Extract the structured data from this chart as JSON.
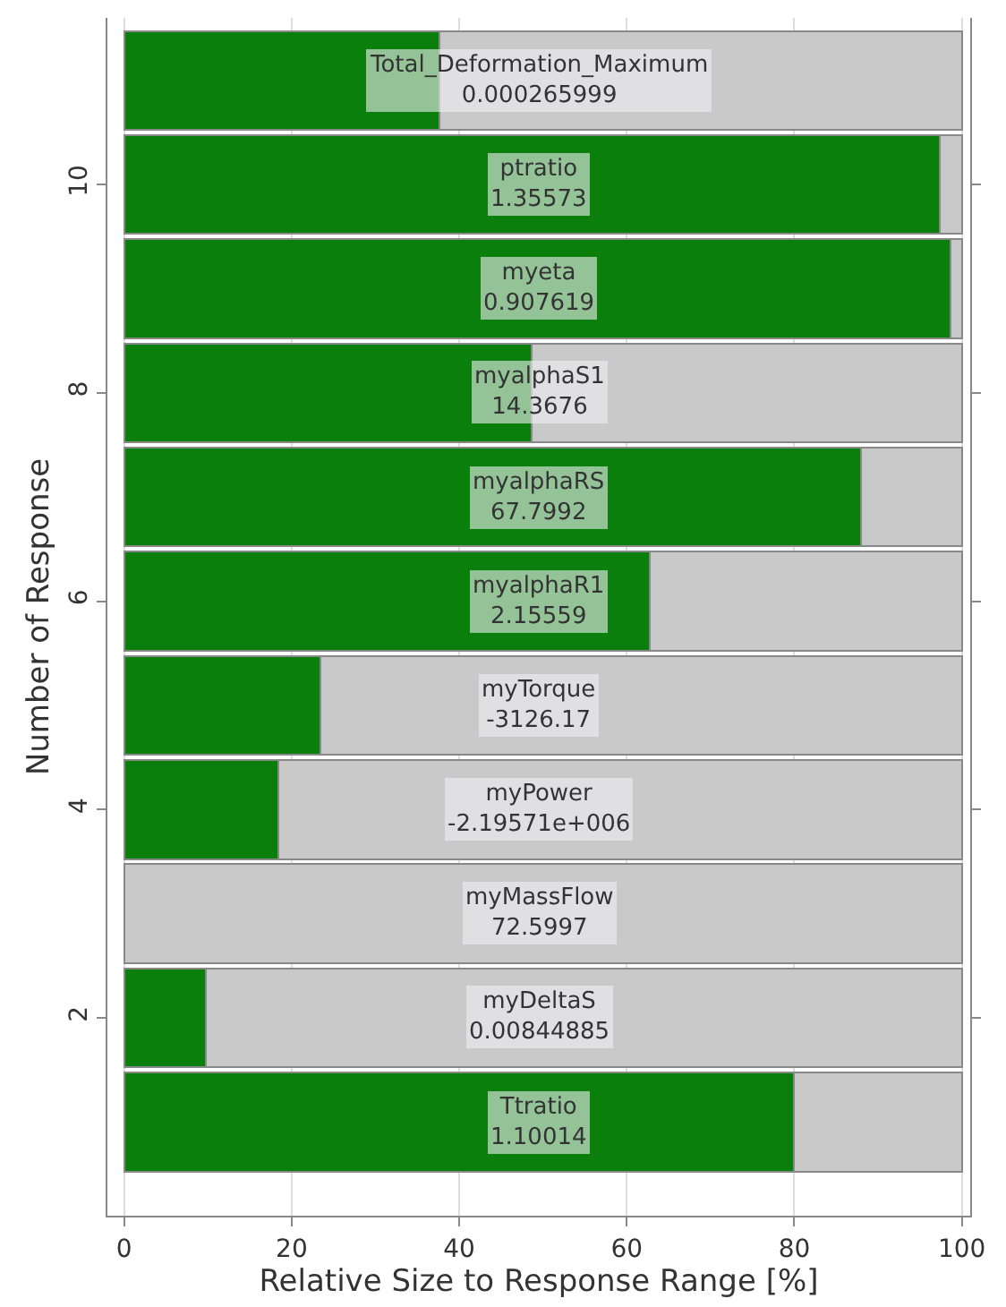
{
  "chart_data": {
    "type": "bar",
    "orientation": "horizontal",
    "stacked": true,
    "xlabel": "Relative Size to Response Range [%]",
    "ylabel": "Number of Response",
    "x": [
      1,
      2,
      3,
      4,
      5,
      6,
      7,
      8,
      9,
      10,
      11
    ],
    "series": [
      {
        "color": "#0b7f0b",
        "values": [
          80.0,
          9.8,
          0,
          18.4,
          23.4,
          62.8,
          88.0,
          48.6,
          98.7,
          97.4,
          37.6
        ]
      },
      {
        "color": "#c9c9c9",
        "values": [
          20.0,
          90.2,
          100,
          81.6,
          76.6,
          37.2,
          12.0,
          51.4,
          1.3,
          2.6,
          62.4
        ]
      }
    ],
    "xlim": [
      -2,
      101
    ],
    "xticks": [
      0,
      20,
      40,
      60,
      80,
      100
    ],
    "ylim": [
      0.1,
      11.6
    ],
    "yticks": [
      2,
      4,
      6,
      8,
      10
    ],
    "grid": "x",
    "annotations": [
      "Ttratio\n1.10014",
      "myDeltaS\n0.00844885",
      "myMassFlow\n72.5997",
      "myPower\n-2.19571e+006",
      "myTorque\n-3126.17",
      "myalphaR1\n2.15559",
      "myalphaRS\n67.7992",
      "myalphaS1\n14.3676",
      "myeta\n0.907619",
      "ptratio\n1.35573",
      "Total_Deformation_Maximum\n0.000265999"
    ]
  }
}
